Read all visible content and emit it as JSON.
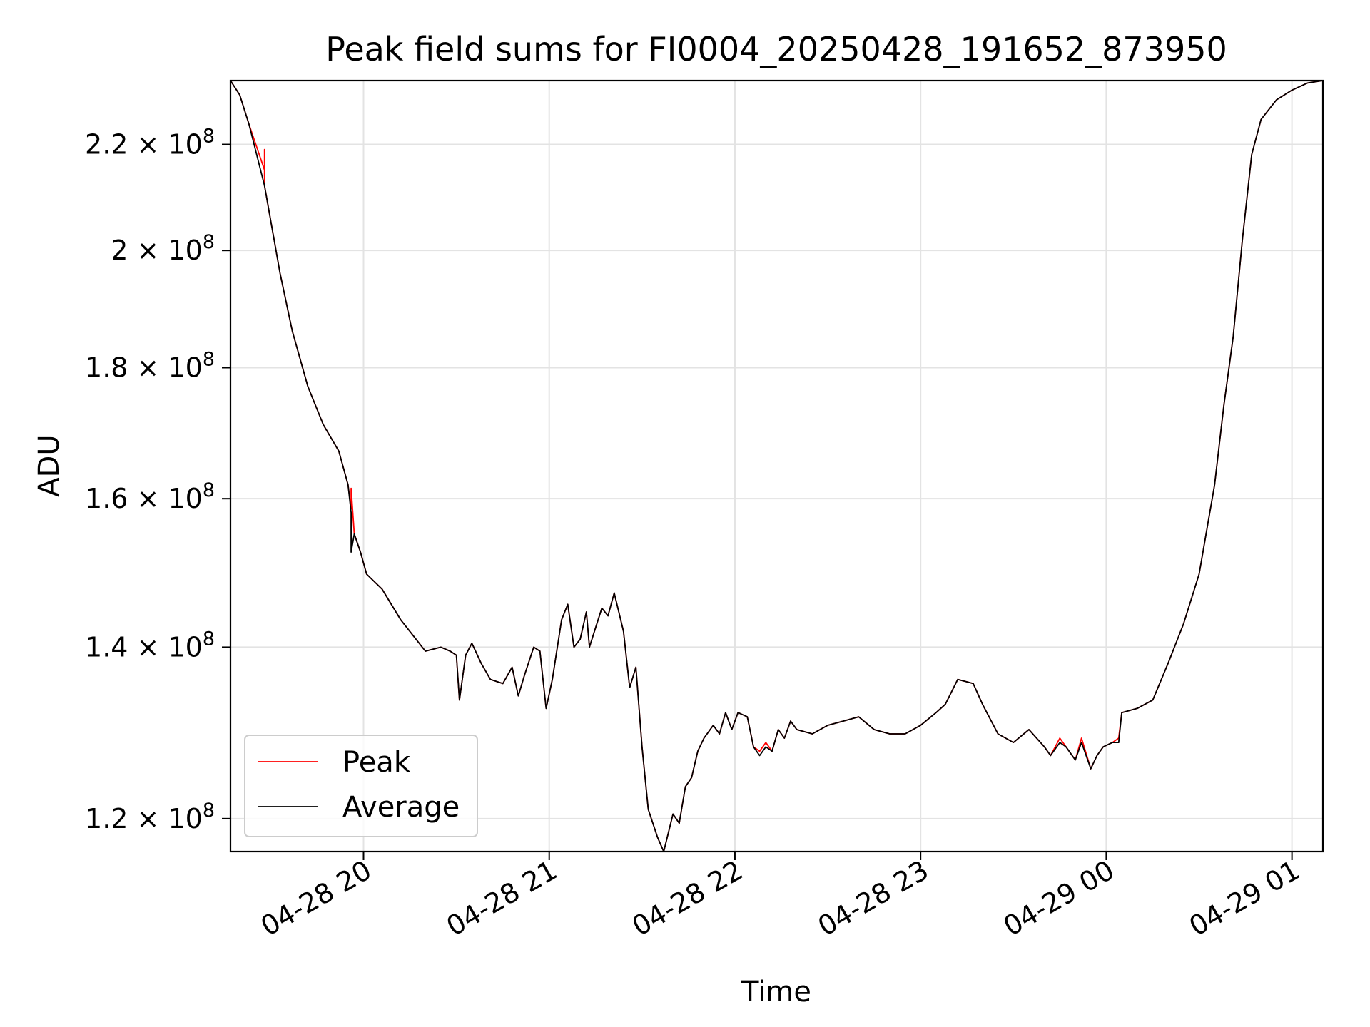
{
  "chart_data": {
    "type": "line",
    "title": "Peak field sums for FI0004_20250428_191652_873950",
    "xlabel": "Time",
    "ylabel": "ADU",
    "y_scale": "log",
    "grid": true,
    "legend_position": "lower-left",
    "x_range": [
      "2025-04-28 19:17",
      "2025-04-29 01:10"
    ],
    "y_range": [
      116500000,
      233000000
    ],
    "x_ticks": [
      {
        "value": "2025-04-28 20:00",
        "label": "04-28 20"
      },
      {
        "value": "2025-04-28 21:00",
        "label": "04-28 21"
      },
      {
        "value": "2025-04-28 22:00",
        "label": "04-28 22"
      },
      {
        "value": "2025-04-28 23:00",
        "label": "04-28 23"
      },
      {
        "value": "2025-04-29 00:00",
        "label": "04-29 00"
      },
      {
        "value": "2025-04-29 01:00",
        "label": "04-29 01"
      }
    ],
    "y_ticks": [
      {
        "value": 120000000,
        "mantissa": "1.2",
        "exponent": "8"
      },
      {
        "value": 140000000,
        "mantissa": "1.4",
        "exponent": "8"
      },
      {
        "value": 160000000,
        "mantissa": "1.6",
        "exponent": "8"
      },
      {
        "value": 180000000,
        "mantissa": "1.8",
        "exponent": "8"
      },
      {
        "value": 200000000,
        "mantissa": "2",
        "exponent": "8"
      },
      {
        "value": 220000000,
        "mantissa": "2.2",
        "exponent": "8"
      }
    ],
    "series": [
      {
        "name": "Peak",
        "color": "#ff0000",
        "points": [
          [
            "2025-04-28 19:17",
            233000000
          ],
          [
            "2025-04-28 19:20",
            230000000
          ],
          [
            "2025-04-28 19:23",
            224000000
          ],
          [
            "2025-04-28 19:28",
            215000000
          ],
          [
            "2025-04-28 19:28",
            219000000
          ],
          [
            "2025-04-28 19:28",
            212000000
          ],
          [
            "2025-04-28 19:33",
            196000000
          ],
          [
            "2025-04-28 19:37",
            186000000
          ],
          [
            "2025-04-28 19:42",
            177000000
          ],
          [
            "2025-04-28 19:47",
            171000000
          ],
          [
            "2025-04-28 19:52",
            167000000
          ],
          [
            "2025-04-28 19:55",
            162000000
          ],
          [
            "2025-04-28 19:56",
            158500000
          ],
          [
            "2025-04-28 19:56",
            161500000
          ],
          [
            "2025-04-28 19:57",
            155000000
          ],
          [
            "2025-04-28 19:59",
            152500000
          ],
          [
            "2025-04-28 20:01",
            149500000
          ],
          [
            "2025-04-28 20:06",
            147500000
          ],
          [
            "2025-04-28 20:12",
            143500000
          ],
          [
            "2025-04-28 20:20",
            139500000
          ],
          [
            "2025-04-28 20:25",
            140000000
          ],
          [
            "2025-04-28 20:28",
            139500000
          ],
          [
            "2025-04-28 20:30",
            139000000
          ],
          [
            "2025-04-28 20:31",
            133500000
          ],
          [
            "2025-04-28 20:33",
            139000000
          ],
          [
            "2025-04-28 20:35",
            140500000
          ],
          [
            "2025-04-28 20:38",
            138000000
          ],
          [
            "2025-04-28 20:41",
            136000000
          ],
          [
            "2025-04-28 20:45",
            135500000
          ],
          [
            "2025-04-28 20:48",
            137500000
          ],
          [
            "2025-04-28 20:50",
            134000000
          ],
          [
            "2025-04-28 20:52",
            136500000
          ],
          [
            "2025-04-28 20:55",
            140000000
          ],
          [
            "2025-04-28 20:57",
            139500000
          ],
          [
            "2025-04-28 20:59",
            132500000
          ],
          [
            "2025-04-28 21:01",
            136000000
          ],
          [
            "2025-04-28 21:04",
            143500000
          ],
          [
            "2025-04-28 21:06",
            145500000
          ],
          [
            "2025-04-28 21:08",
            140000000
          ],
          [
            "2025-04-28 21:10",
            141000000
          ],
          [
            "2025-04-28 21:12",
            144500000
          ],
          [
            "2025-04-28 21:13",
            140000000
          ],
          [
            "2025-04-28 21:15",
            142500000
          ],
          [
            "2025-04-28 21:17",
            145000000
          ],
          [
            "2025-04-28 21:19",
            144000000
          ],
          [
            "2025-04-28 21:21",
            147000000
          ],
          [
            "2025-04-28 21:24",
            142000000
          ],
          [
            "2025-04-28 21:26",
            135000000
          ],
          [
            "2025-04-28 21:28",
            137500000
          ],
          [
            "2025-04-28 21:30",
            128000000
          ],
          [
            "2025-04-28 21:32",
            121000000
          ],
          [
            "2025-04-28 21:35",
            118000000
          ],
          [
            "2025-04-28 21:37",
            116500000
          ],
          [
            "2025-04-28 21:40",
            120500000
          ],
          [
            "2025-04-28 21:42",
            119500000
          ],
          [
            "2025-04-28 21:44",
            123500000
          ],
          [
            "2025-04-28 21:46",
            124500000
          ],
          [
            "2025-04-28 21:48",
            127500000
          ],
          [
            "2025-04-28 21:50",
            129000000
          ],
          [
            "2025-04-28 21:53",
            130500000
          ],
          [
            "2025-04-28 21:55",
            129500000
          ],
          [
            "2025-04-28 21:57",
            132000000
          ],
          [
            "2025-04-28 21:59",
            130000000
          ],
          [
            "2025-04-28 22:01",
            132000000
          ],
          [
            "2025-04-28 22:04",
            131500000
          ],
          [
            "2025-04-28 22:06",
            128000000
          ],
          [
            "2025-04-28 22:08",
            127500000
          ],
          [
            "2025-04-28 22:10",
            128500000
          ],
          [
            "2025-04-28 22:12",
            127500000
          ],
          [
            "2025-04-28 22:14",
            130000000
          ],
          [
            "2025-04-28 22:16",
            129000000
          ],
          [
            "2025-04-28 22:18",
            131000000
          ],
          [
            "2025-04-28 22:20",
            130000000
          ],
          [
            "2025-04-28 22:25",
            129500000
          ],
          [
            "2025-04-28 22:30",
            130500000
          ],
          [
            "2025-04-28 22:35",
            131000000
          ],
          [
            "2025-04-28 22:40",
            131500000
          ],
          [
            "2025-04-28 22:45",
            130000000
          ],
          [
            "2025-04-28 22:50",
            129500000
          ],
          [
            "2025-04-28 22:55",
            129500000
          ],
          [
            "2025-04-28 23:00",
            130500000
          ],
          [
            "2025-04-28 23:05",
            132000000
          ],
          [
            "2025-04-28 23:08",
            133000000
          ],
          [
            "2025-04-28 23:12",
            136000000
          ],
          [
            "2025-04-28 23:17",
            135500000
          ],
          [
            "2025-04-28 23:20",
            133000000
          ],
          [
            "2025-04-28 23:25",
            129500000
          ],
          [
            "2025-04-28 23:30",
            128500000
          ],
          [
            "2025-04-28 23:35",
            130000000
          ],
          [
            "2025-04-28 23:40",
            128000000
          ],
          [
            "2025-04-28 23:42",
            127000000
          ],
          [
            "2025-04-28 23:45",
            129000000
          ],
          [
            "2025-04-28 23:47",
            128000000
          ],
          [
            "2025-04-28 23:50",
            126500000
          ],
          [
            "2025-04-28 23:52",
            129000000
          ],
          [
            "2025-04-28 23:55",
            125500000
          ],
          [
            "2025-04-28 23:57",
            127000000
          ],
          [
            "2025-04-28 23:59",
            128000000
          ],
          [
            "2025-04-29 00:02",
            128500000
          ],
          [
            "2025-04-29 00:04",
            129000000
          ],
          [
            "2025-04-29 00:05",
            132000000
          ],
          [
            "2025-04-29 00:10",
            132500000
          ],
          [
            "2025-04-29 00:15",
            133500000
          ],
          [
            "2025-04-29 00:20",
            138000000
          ],
          [
            "2025-04-29 00:25",
            143000000
          ],
          [
            "2025-04-29 00:30",
            149500000
          ],
          [
            "2025-04-29 00:35",
            162000000
          ],
          [
            "2025-04-29 00:38",
            174000000
          ],
          [
            "2025-04-29 00:41",
            185000000
          ],
          [
            "2025-04-29 00:44",
            202000000
          ],
          [
            "2025-04-29 00:47",
            218000000
          ],
          [
            "2025-04-29 00:50",
            225000000
          ],
          [
            "2025-04-29 00:55",
            229000000
          ],
          [
            "2025-04-29 01:00",
            231000000
          ],
          [
            "2025-04-29 01:05",
            232500000
          ],
          [
            "2025-04-29 01:10",
            233000000
          ]
        ]
      },
      {
        "name": "Average",
        "color": "#000000",
        "points": [
          [
            "2025-04-28 19:17",
            233000000
          ],
          [
            "2025-04-28 19:20",
            230000000
          ],
          [
            "2025-04-28 19:23",
            224000000
          ],
          [
            "2025-04-28 19:28",
            212000000
          ],
          [
            "2025-04-28 19:33",
            196000000
          ],
          [
            "2025-04-28 19:37",
            186000000
          ],
          [
            "2025-04-28 19:42",
            177000000
          ],
          [
            "2025-04-28 19:47",
            171000000
          ],
          [
            "2025-04-28 19:52",
            167000000
          ],
          [
            "2025-04-28 19:55",
            162000000
          ],
          [
            "2025-04-28 19:56",
            158000000
          ],
          [
            "2025-04-28 19:56",
            152500000
          ],
          [
            "2025-04-28 19:57",
            155000000
          ],
          [
            "2025-04-28 19:59",
            152500000
          ],
          [
            "2025-04-28 20:01",
            149500000
          ],
          [
            "2025-04-28 20:06",
            147500000
          ],
          [
            "2025-04-28 20:12",
            143500000
          ],
          [
            "2025-04-28 20:20",
            139500000
          ],
          [
            "2025-04-28 20:25",
            140000000
          ],
          [
            "2025-04-28 20:28",
            139500000
          ],
          [
            "2025-04-28 20:30",
            139000000
          ],
          [
            "2025-04-28 20:31",
            133500000
          ],
          [
            "2025-04-28 20:33",
            139000000
          ],
          [
            "2025-04-28 20:35",
            140500000
          ],
          [
            "2025-04-28 20:38",
            138000000
          ],
          [
            "2025-04-28 20:41",
            136000000
          ],
          [
            "2025-04-28 20:45",
            135500000
          ],
          [
            "2025-04-28 20:48",
            137500000
          ],
          [
            "2025-04-28 20:50",
            134000000
          ],
          [
            "2025-04-28 20:52",
            136500000
          ],
          [
            "2025-04-28 20:55",
            140000000
          ],
          [
            "2025-04-28 20:57",
            139500000
          ],
          [
            "2025-04-28 20:59",
            132500000
          ],
          [
            "2025-04-28 21:01",
            136000000
          ],
          [
            "2025-04-28 21:04",
            143500000
          ],
          [
            "2025-04-28 21:06",
            145500000
          ],
          [
            "2025-04-28 21:08",
            140000000
          ],
          [
            "2025-04-28 21:10",
            141000000
          ],
          [
            "2025-04-28 21:12",
            144500000
          ],
          [
            "2025-04-28 21:13",
            140000000
          ],
          [
            "2025-04-28 21:15",
            142500000
          ],
          [
            "2025-04-28 21:17",
            145000000
          ],
          [
            "2025-04-28 21:19",
            144000000
          ],
          [
            "2025-04-28 21:21",
            147000000
          ],
          [
            "2025-04-28 21:24",
            142000000
          ],
          [
            "2025-04-28 21:26",
            135000000
          ],
          [
            "2025-04-28 21:28",
            137500000
          ],
          [
            "2025-04-28 21:30",
            128000000
          ],
          [
            "2025-04-28 21:32",
            121000000
          ],
          [
            "2025-04-28 21:35",
            118000000
          ],
          [
            "2025-04-28 21:37",
            116500000
          ],
          [
            "2025-04-28 21:40",
            120500000
          ],
          [
            "2025-04-28 21:42",
            119500000
          ],
          [
            "2025-04-28 21:44",
            123500000
          ],
          [
            "2025-04-28 21:46",
            124500000
          ],
          [
            "2025-04-28 21:48",
            127500000
          ],
          [
            "2025-04-28 21:50",
            129000000
          ],
          [
            "2025-04-28 21:53",
            130500000
          ],
          [
            "2025-04-28 21:55",
            129500000
          ],
          [
            "2025-04-28 21:57",
            132000000
          ],
          [
            "2025-04-28 21:59",
            130000000
          ],
          [
            "2025-04-28 22:01",
            132000000
          ],
          [
            "2025-04-28 22:04",
            131500000
          ],
          [
            "2025-04-28 22:06",
            128000000
          ],
          [
            "2025-04-28 22:08",
            127000000
          ],
          [
            "2025-04-28 22:10",
            128000000
          ],
          [
            "2025-04-28 22:12",
            127500000
          ],
          [
            "2025-04-28 22:14",
            130000000
          ],
          [
            "2025-04-28 22:16",
            129000000
          ],
          [
            "2025-04-28 22:18",
            131000000
          ],
          [
            "2025-04-28 22:20",
            130000000
          ],
          [
            "2025-04-28 22:25",
            129500000
          ],
          [
            "2025-04-28 22:30",
            130500000
          ],
          [
            "2025-04-28 22:35",
            131000000
          ],
          [
            "2025-04-28 22:40",
            131500000
          ],
          [
            "2025-04-28 22:45",
            130000000
          ],
          [
            "2025-04-28 22:50",
            129500000
          ],
          [
            "2025-04-28 22:55",
            129500000
          ],
          [
            "2025-04-28 23:00",
            130500000
          ],
          [
            "2025-04-28 23:05",
            132000000
          ],
          [
            "2025-04-28 23:08",
            133000000
          ],
          [
            "2025-04-28 23:12",
            136000000
          ],
          [
            "2025-04-28 23:17",
            135500000
          ],
          [
            "2025-04-28 23:20",
            133000000
          ],
          [
            "2025-04-28 23:25",
            129500000
          ],
          [
            "2025-04-28 23:30",
            128500000
          ],
          [
            "2025-04-28 23:35",
            130000000
          ],
          [
            "2025-04-28 23:40",
            128000000
          ],
          [
            "2025-04-28 23:42",
            127000000
          ],
          [
            "2025-04-28 23:45",
            128500000
          ],
          [
            "2025-04-28 23:47",
            128000000
          ],
          [
            "2025-04-28 23:50",
            126500000
          ],
          [
            "2025-04-28 23:52",
            128500000
          ],
          [
            "2025-04-28 23:55",
            125500000
          ],
          [
            "2025-04-28 23:57",
            127000000
          ],
          [
            "2025-04-28 23:59",
            128000000
          ],
          [
            "2025-04-29 00:02",
            128500000
          ],
          [
            "2025-04-29 00:04",
            128500000
          ],
          [
            "2025-04-29 00:05",
            132000000
          ],
          [
            "2025-04-29 00:10",
            132500000
          ],
          [
            "2025-04-29 00:15",
            133500000
          ],
          [
            "2025-04-29 00:20",
            138000000
          ],
          [
            "2025-04-29 00:25",
            143000000
          ],
          [
            "2025-04-29 00:30",
            149500000
          ],
          [
            "2025-04-29 00:35",
            162000000
          ],
          [
            "2025-04-29 00:38",
            174000000
          ],
          [
            "2025-04-29 00:41",
            185000000
          ],
          [
            "2025-04-29 00:44",
            202000000
          ],
          [
            "2025-04-29 00:47",
            218000000
          ],
          [
            "2025-04-29 00:50",
            225000000
          ],
          [
            "2025-04-29 00:55",
            229000000
          ],
          [
            "2025-04-29 01:00",
            231000000
          ],
          [
            "2025-04-29 01:05",
            232500000
          ],
          [
            "2025-04-29 01:10",
            233000000
          ]
        ]
      }
    ]
  }
}
